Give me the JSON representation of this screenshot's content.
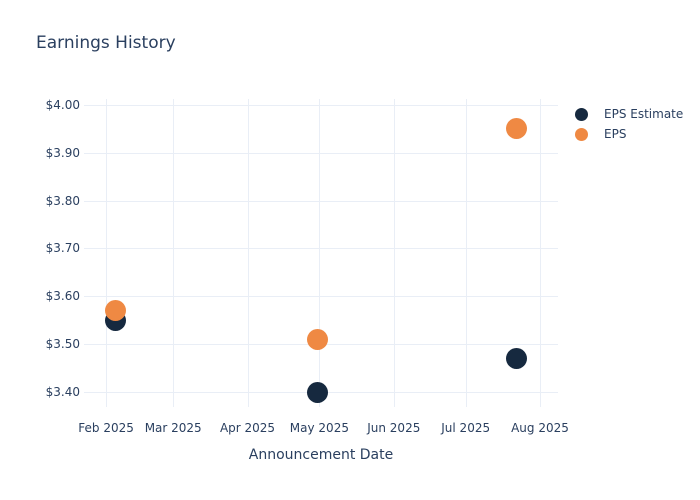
{
  "colors": {
    "text": "#2a3f5f",
    "grid": "#e9eef6",
    "background": "#ffffff",
    "estimate": "#16293f",
    "actual": "#ef8943"
  },
  "chart_data": {
    "type": "scatter",
    "title": "Earnings History",
    "xlabel": "Announcement Date",
    "ylabel": "",
    "grid": true,
    "legend_position": "top-right-outside",
    "x_encoding": "day-of-year-2025",
    "xlim": [
      21.8,
      219.5
    ],
    "ylim": [
      3.369,
      4.012
    ],
    "marker_size": 21,
    "legend_marker_size": 13,
    "x_ticks": [
      {
        "day": 31,
        "label": "Feb 2025"
      },
      {
        "day": 59,
        "label": "Mar 2025"
      },
      {
        "day": 90,
        "label": "Apr 2025"
      },
      {
        "day": 120,
        "label": "May 2025"
      },
      {
        "day": 151,
        "label": "Jun 2025"
      },
      {
        "day": 181,
        "label": "Jul 2025"
      },
      {
        "day": 212,
        "label": "Aug 2025"
      }
    ],
    "y_ticks": [
      {
        "value": 4.0,
        "label": "$4.00"
      },
      {
        "value": 3.9,
        "label": "$3.90"
      },
      {
        "value": 3.8,
        "label": "$3.80"
      },
      {
        "value": 3.7,
        "label": "$3.70"
      },
      {
        "value": 3.6,
        "label": "$3.60"
      },
      {
        "value": 3.5,
        "label": "$3.50"
      },
      {
        "value": 3.4,
        "label": "$3.40"
      }
    ],
    "series": [
      {
        "name": "EPS Estimate",
        "color": "#16293f",
        "points": [
          {
            "x": 35,
            "y": 3.55
          },
          {
            "x": 119,
            "y": 3.4
          },
          {
            "x": 202,
            "y": 3.47
          }
        ]
      },
      {
        "name": "EPS",
        "color": "#ef8943",
        "points": [
          {
            "x": 35,
            "y": 3.57
          },
          {
            "x": 119,
            "y": 3.51
          },
          {
            "x": 202,
            "y": 3.95
          }
        ]
      }
    ]
  }
}
